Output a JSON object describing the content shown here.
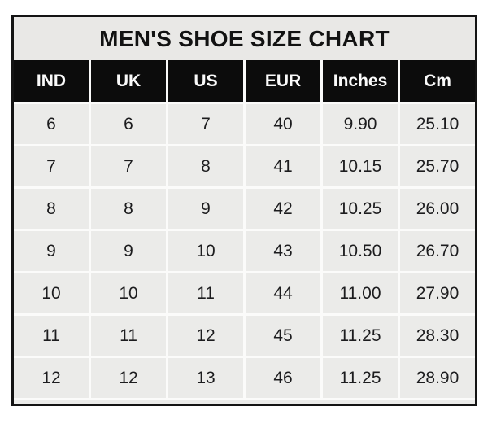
{
  "chart_data": {
    "type": "table",
    "title": "MEN'S SHOE SIZE CHART",
    "columns": [
      "IND",
      "UK",
      "US",
      "EUR",
      "Inches",
      "Cm"
    ],
    "rows": [
      [
        "6",
        "6",
        "7",
        "40",
        "9.90",
        "25.10"
      ],
      [
        "7",
        "7",
        "8",
        "41",
        "10.15",
        "25.70"
      ],
      [
        "8",
        "8",
        "9",
        "42",
        "10.25",
        "26.00"
      ],
      [
        "9",
        "9",
        "10",
        "43",
        "10.50",
        "26.70"
      ],
      [
        "10",
        "10",
        "11",
        "44",
        "11.00",
        "27.90"
      ],
      [
        "11",
        "11",
        "12",
        "45",
        "11.25",
        "28.30"
      ],
      [
        "12",
        "12",
        "13",
        "46",
        "11.25",
        "28.90"
      ]
    ]
  },
  "colors": {
    "page_background": "#ffffff",
    "outer_border": "#141414",
    "title_band_bg": "#e9e8e6",
    "header_bg": "#0c0c0c",
    "header_text": "#fafafa",
    "cell_bg": "#ebebe9",
    "gridline": "#fbfbfa",
    "cell_text": "#1c1c1e"
  }
}
